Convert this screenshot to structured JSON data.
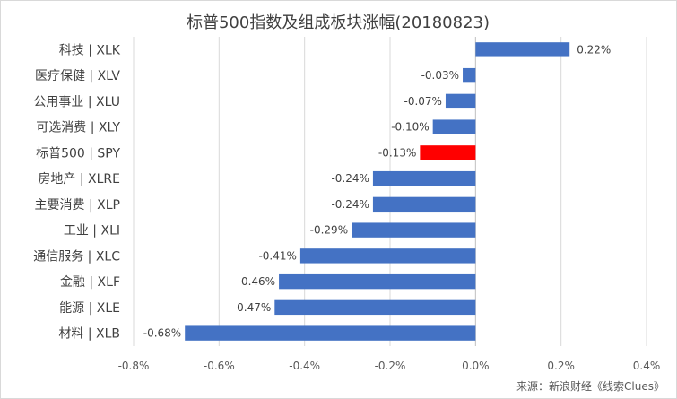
{
  "chart_data": {
    "type": "bar",
    "orientation": "horizontal",
    "title": "标普500指数及组成板块涨幅(20180823)",
    "categories": [
      "科技 | XLK",
      "医疗保健 | XLV",
      "公用事业 | XLU",
      "可选消费 | XLY",
      "标普500 | SPY",
      "房地产 | XLRE",
      "主要消费 | XLP",
      "工业 | XLI",
      "通信服务 | XLC",
      "金融 | XLF",
      "能源 | XLE",
      "材料 | XLB"
    ],
    "values": [
      0.22,
      -0.03,
      -0.07,
      -0.1,
      -0.13,
      -0.24,
      -0.24,
      -0.29,
      -0.41,
      -0.46,
      -0.47,
      -0.68
    ],
    "value_labels": [
      "0.22%",
      "-0.03%",
      "-0.07%",
      "-0.10%",
      "-0.13%",
      "-0.24%",
      "-0.24%",
      "-0.29%",
      "-0.41%",
      "-0.46%",
      "-0.47%",
      "-0.68%"
    ],
    "xlim": [
      -0.8,
      0.4
    ],
    "x_ticks": [
      -0.8,
      -0.6,
      -0.4,
      -0.2,
      0.0,
      0.2,
      0.4
    ],
    "x_tick_labels": [
      "-0.8%",
      "-0.6%",
      "-0.4%",
      "-0.2%",
      "0.0%",
      "0.2%",
      "0.4%"
    ],
    "xlabel": "",
    "ylabel": "",
    "grid": true,
    "bar_color": "#4472c4",
    "highlight_color": "#ff0000",
    "highlight_category": "标普500 | SPY"
  },
  "source": "来源：新浪财经《线索Clues》"
}
